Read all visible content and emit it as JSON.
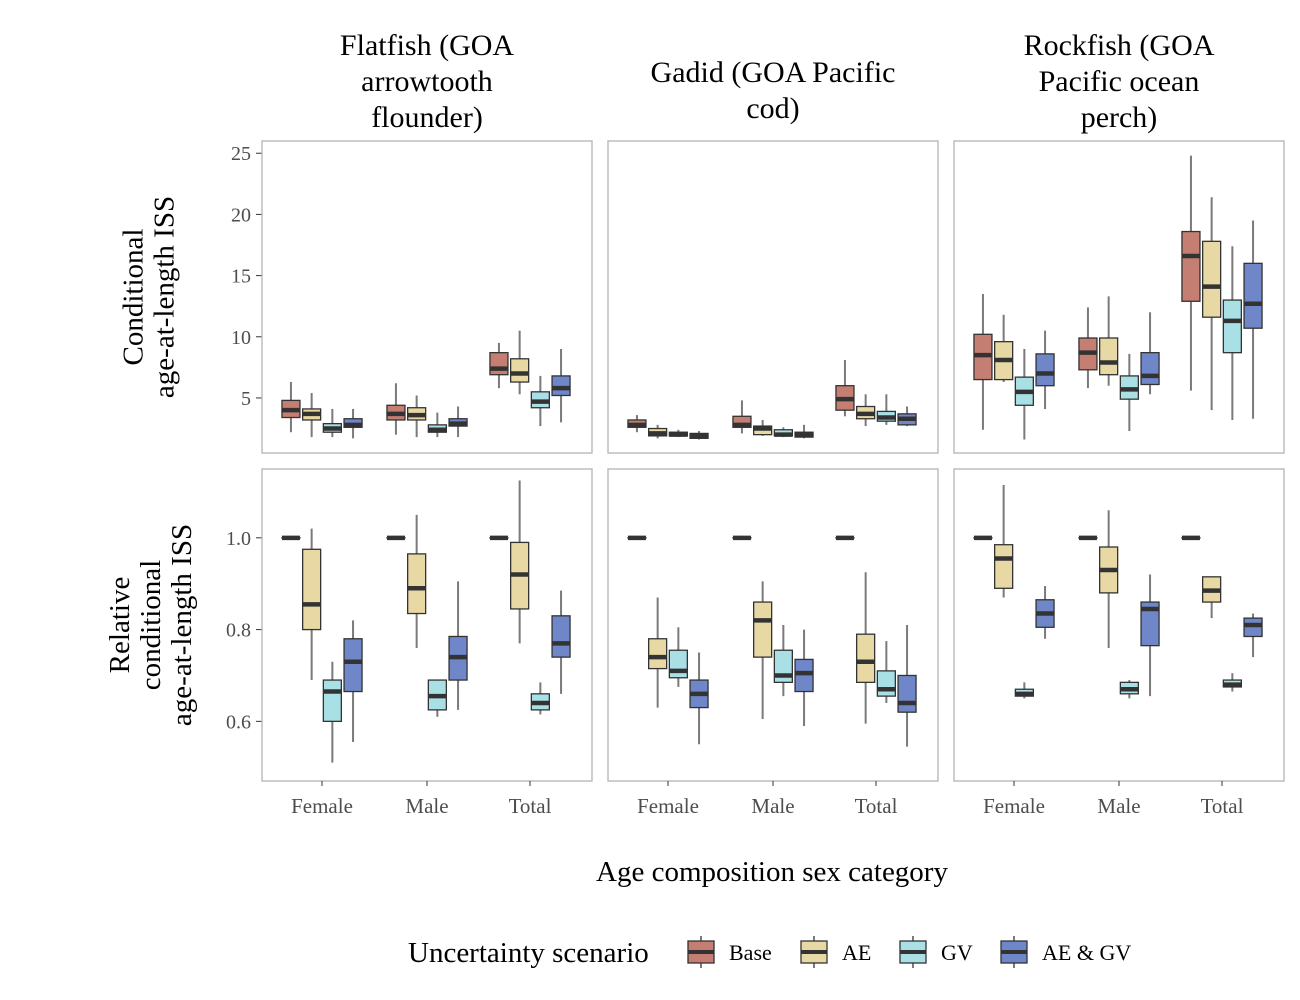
{
  "chart_data": {
    "type": "boxplot",
    "facet_columns": [
      "Flatfish (GOA\narrowtooth\nflounder)",
      "Gadid (GOA Pacific\ncod)",
      "Rockfish (GOA\nPacific ocean\nperch)"
    ],
    "facet_rows": [
      {
        "ylabel": "Conditional\nage-at-length ISS",
        "ylim": [
          0.5,
          26
        ],
        "yticks": [
          5,
          10,
          15,
          20,
          25
        ]
      },
      {
        "ylabel": "Relative\nconditional\nage-at-length ISS",
        "ylim": [
          0.47,
          1.15
        ],
        "yticks": [
          0.6,
          0.8,
          1.0
        ]
      }
    ],
    "categories": [
      "Female",
      "Male",
      "Total"
    ],
    "xlabel": "Age composition sex category",
    "legend": {
      "title": "Uncertainty scenario",
      "position": "bottom",
      "entries": [
        {
          "name": "Base",
          "color": "#c47e72"
        },
        {
          "name": "AE",
          "color": "#e8d9a4"
        },
        {
          "name": "GV",
          "color": "#a8e0e6"
        },
        {
          "name": "AE & GV",
          "color": "#6f86c9"
        }
      ]
    },
    "series_order": [
      "Base",
      "AE",
      "GV",
      "AE & GV"
    ],
    "grid": false,
    "panels": [
      [
        [
          [
            [
              2.2,
              3.4,
              4.0,
              4.8,
              6.3
            ],
            [
              1.8,
              3.2,
              3.7,
              4.1,
              5.4
            ],
            [
              1.8,
              2.2,
              2.5,
              2.9,
              4.1
            ],
            [
              1.7,
              2.6,
              2.8,
              3.3,
              4.1
            ]
          ],
          [
            [
              2.0,
              3.2,
              3.7,
              4.4,
              6.2
            ],
            [
              1.8,
              3.2,
              3.6,
              4.2,
              5.2
            ],
            [
              1.8,
              2.2,
              2.4,
              2.8,
              3.8
            ],
            [
              1.8,
              2.7,
              2.9,
              3.3,
              4.3
            ]
          ],
          [
            [
              5.8,
              6.9,
              7.4,
              8.7,
              9.5
            ],
            [
              5.3,
              6.3,
              7.0,
              8.2,
              10.5
            ],
            [
              2.7,
              4.2,
              4.7,
              5.5,
              6.8
            ],
            [
              3.0,
              5.2,
              5.8,
              6.8,
              9.0
            ]
          ]
        ],
        [
          [
            [
              2.2,
              2.6,
              2.8,
              3.2,
              3.6
            ],
            [
              1.7,
              1.9,
              2.1,
              2.5,
              2.8
            ],
            [
              1.8,
              1.9,
              2.0,
              2.2,
              2.4
            ],
            [
              1.6,
              1.7,
              1.9,
              2.1,
              2.3
            ]
          ],
          [
            [
              2.1,
              2.6,
              2.8,
              3.5,
              4.8
            ],
            [
              1.9,
              2.0,
              2.5,
              2.7,
              3.2
            ],
            [
              1.8,
              1.9,
              2.0,
              2.4,
              2.6
            ],
            [
              1.7,
              1.8,
              2.0,
              2.2,
              2.8
            ]
          ],
          [
            [
              3.5,
              4.0,
              4.9,
              6.0,
              8.1
            ],
            [
              2.7,
              3.3,
              3.7,
              4.3,
              5.3
            ],
            [
              2.8,
              3.1,
              3.4,
              3.9,
              5.3
            ],
            [
              2.7,
              2.8,
              3.3,
              3.7,
              4.3
            ]
          ]
        ],
        [
          [
            [
              2.4,
              6.5,
              8.5,
              10.2,
              13.5
            ],
            [
              6.3,
              6.5,
              8.1,
              9.6,
              11.8
            ],
            [
              1.6,
              4.4,
              5.5,
              6.7,
              9.0
            ],
            [
              4.1,
              6.0,
              7.0,
              8.6,
              10.5
            ]
          ],
          [
            [
              5.8,
              7.3,
              8.7,
              9.9,
              12.4
            ],
            [
              6.0,
              6.9,
              7.9,
              9.9,
              13.3
            ],
            [
              2.3,
              4.9,
              5.7,
              6.8,
              8.6
            ],
            [
              5.3,
              6.1,
              6.8,
              8.7,
              12.0
            ]
          ],
          [
            [
              5.6,
              12.9,
              16.6,
              18.6,
              24.8
            ],
            [
              4.0,
              11.6,
              14.1,
              17.8,
              21.4
            ],
            [
              3.2,
              8.7,
              11.3,
              13.0,
              17.4
            ],
            [
              3.3,
              10.7,
              12.7,
              16.0,
              19.5
            ]
          ]
        ]
      ],
      [
        [
          [
            [
              1.0,
              1.0,
              1.0,
              1.0,
              1.0
            ],
            [
              0.69,
              0.8,
              0.855,
              0.975,
              1.02
            ],
            [
              0.51,
              0.6,
              0.665,
              0.69,
              0.73
            ],
            [
              0.555,
              0.665,
              0.73,
              0.78,
              0.82
            ]
          ],
          [
            [
              1.0,
              1.0,
              1.0,
              1.0,
              1.0
            ],
            [
              0.76,
              0.835,
              0.89,
              0.965,
              1.05
            ],
            [
              0.61,
              0.625,
              0.655,
              0.69,
              0.69
            ],
            [
              0.625,
              0.69,
              0.74,
              0.785,
              0.905
            ]
          ],
          [
            [
              1.0,
              1.0,
              1.0,
              1.0,
              1.0
            ],
            [
              0.77,
              0.845,
              0.92,
              0.99,
              1.125
            ],
            [
              0.615,
              0.625,
              0.64,
              0.66,
              0.685
            ],
            [
              0.66,
              0.74,
              0.77,
              0.83,
              0.885
            ]
          ]
        ],
        [
          [
            [
              1.0,
              1.0,
              1.0,
              1.0,
              1.0
            ],
            [
              0.63,
              0.715,
              0.74,
              0.78,
              0.87
            ],
            [
              0.675,
              0.695,
              0.71,
              0.755,
              0.805
            ],
            [
              0.55,
              0.63,
              0.66,
              0.69,
              0.75
            ]
          ],
          [
            [
              1.0,
              1.0,
              1.0,
              1.0,
              1.0
            ],
            [
              0.605,
              0.74,
              0.82,
              0.86,
              0.905
            ],
            [
              0.655,
              0.685,
              0.7,
              0.755,
              0.81
            ],
            [
              0.59,
              0.665,
              0.705,
              0.735,
              0.8
            ]
          ],
          [
            [
              1.0,
              1.0,
              1.0,
              1.0,
              1.0
            ],
            [
              0.595,
              0.685,
              0.73,
              0.79,
              0.925
            ],
            [
              0.64,
              0.655,
              0.67,
              0.71,
              0.775
            ],
            [
              0.545,
              0.62,
              0.64,
              0.7,
              0.81
            ]
          ]
        ],
        [
          [
            [
              1.0,
              1.0,
              1.0,
              1.0,
              1.0
            ],
            [
              0.87,
              0.89,
              0.955,
              0.985,
              1.115
            ],
            [
              0.65,
              0.655,
              0.66,
              0.67,
              0.685
            ],
            [
              0.78,
              0.805,
              0.835,
              0.865,
              0.895
            ]
          ],
          [
            [
              1.0,
              1.0,
              1.0,
              1.0,
              1.0
            ],
            [
              0.76,
              0.88,
              0.93,
              0.98,
              1.06
            ],
            [
              0.65,
              0.66,
              0.67,
              0.685,
              0.69
            ],
            [
              0.655,
              0.765,
              0.845,
              0.86,
              0.92
            ]
          ],
          [
            [
              1.0,
              1.0,
              1.0,
              1.0,
              1.0
            ],
            [
              0.825,
              0.86,
              0.885,
              0.915,
              0.915
            ],
            [
              0.665,
              0.675,
              0.68,
              0.69,
              0.705
            ],
            [
              0.74,
              0.785,
              0.81,
              0.825,
              0.835
            ]
          ]
        ]
      ]
    ]
  }
}
